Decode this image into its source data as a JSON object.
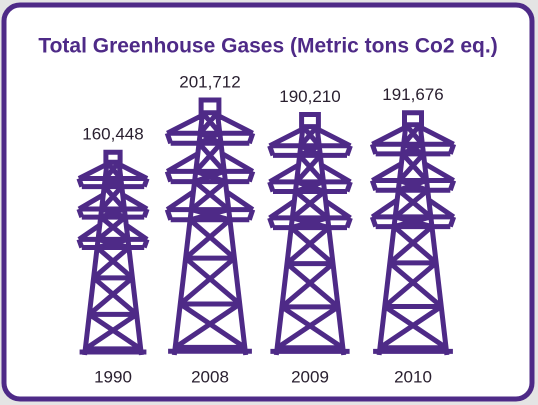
{
  "chart_data": {
    "type": "pictograph",
    "title": "Total Greenhouse Gases (Metric tons Co2 eq.)",
    "categories": [
      "1990",
      "2008",
      "2009",
      "2010"
    ],
    "values": [
      160448,
      201712,
      190210,
      191676
    ],
    "value_labels": [
      "160,448",
      "201,712",
      "190,210",
      "191,676"
    ],
    "color": "#4e2a87"
  }
}
